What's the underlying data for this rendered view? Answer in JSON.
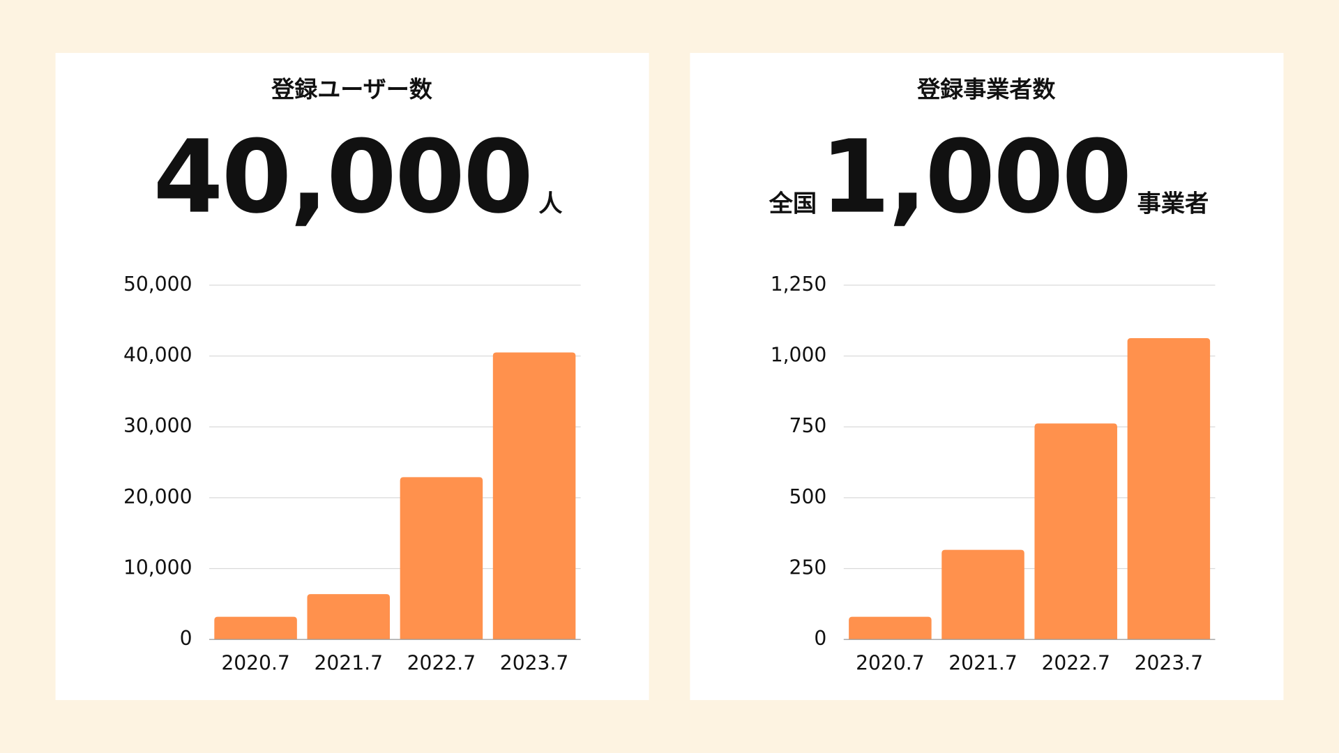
{
  "chart_data": [
    {
      "type": "bar",
      "title": "登録ユーザー数",
      "headline": {
        "value": "40,000",
        "suffix": "人"
      },
      "categories": [
        "2020.7",
        "2021.7",
        "2022.7",
        "2023.7"
      ],
      "values": [
        3200,
        6400,
        22900,
        40500
      ],
      "color": "#ff914d",
      "ylim": [
        0,
        50000
      ],
      "yticks": [
        0,
        {
          "value": 10000,
          "label": "10,000"
        },
        {
          "value": 20000,
          "label": "20,000"
        },
        {
          "value": 30000,
          "label": "30,000"
        },
        {
          "value": 40000,
          "label": "40,000"
        },
        {
          "value": 50000,
          "label": "50,000"
        }
      ],
      "grid": true
    },
    {
      "type": "bar",
      "title": "登録事業者数",
      "headline": {
        "prefix": "全国",
        "value": "1,000",
        "suffix": "事業者"
      },
      "categories": [
        "2020.7",
        "2021.7",
        "2022.7",
        "2023.7"
      ],
      "values": [
        80,
        316,
        762,
        1063
      ],
      "color": "#ff914d",
      "ylim": [
        0,
        1250
      ],
      "yticks": [
        0,
        250,
        500,
        750,
        {
          "value": 1000,
          "label": "1,000"
        },
        {
          "value": 1250,
          "label": "1,250"
        }
      ],
      "grid": true
    }
  ]
}
